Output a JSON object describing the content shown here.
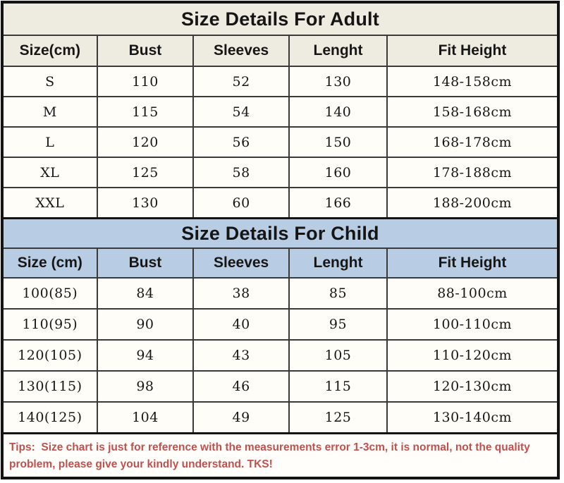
{
  "colors": {
    "adult_section_bg": "#eeece1",
    "child_section_bg": "#b8cce4",
    "row_bg": "#fffdf7",
    "grid_line": "#3a3a3a",
    "outer_border": "#141414",
    "table_text": "#161616",
    "tips_text": "#c0504d"
  },
  "adult": {
    "title": "Size Details For Adult",
    "columns": [
      "Size(cm)",
      "Bust",
      "Sleeves",
      "Lenght",
      "Fit Height"
    ],
    "rows": [
      [
        "S",
        "110",
        "52",
        "130",
        "148-158cm"
      ],
      [
        "M",
        "115",
        "54",
        "140",
        "158-168cm"
      ],
      [
        "L",
        "120",
        "56",
        "150",
        "168-178cm"
      ],
      [
        "XL",
        "125",
        "58",
        "160",
        "178-188cm"
      ],
      [
        "XXL",
        "130",
        "60",
        "166",
        "188-200cm"
      ]
    ]
  },
  "child": {
    "title": "Size Details For Child",
    "columns": [
      "Size (cm)",
      "Bust",
      "Sleeves",
      "Lenght",
      "Fit Height"
    ],
    "rows": [
      [
        "100(85)",
        "84",
        "38",
        "85",
        "88-100cm"
      ],
      [
        "110(95)",
        "90",
        "40",
        "95",
        "100-110cm"
      ],
      [
        "120(105)",
        "94",
        "43",
        "105",
        "110-120cm"
      ],
      [
        "130(115)",
        "98",
        "46",
        "115",
        "120-130cm"
      ],
      [
        "140(125)",
        "104",
        "49",
        "125",
        "130-140cm"
      ]
    ]
  },
  "tips": {
    "text": "Tips:  Size chart is just for reference with the measurements error 1-3cm, it is normal, not the quality\nproblem, please give your kindly understand. TKS!"
  },
  "chart_data": [
    {
      "type": "table",
      "title": "Size Details For Adult",
      "columns": [
        "Size(cm)",
        "Bust",
        "Sleeves",
        "Lenght",
        "Fit Height"
      ],
      "rows": [
        [
          "S",
          110,
          52,
          130,
          "148-158cm"
        ],
        [
          "M",
          115,
          54,
          140,
          "158-168cm"
        ],
        [
          "L",
          120,
          56,
          150,
          "168-178cm"
        ],
        [
          "XL",
          125,
          58,
          160,
          "178-188cm"
        ],
        [
          "XXL",
          130,
          60,
          166,
          "188-200cm"
        ]
      ]
    },
    {
      "type": "table",
      "title": "Size Details For Child",
      "columns": [
        "Size (cm)",
        "Bust",
        "Sleeves",
        "Lenght",
        "Fit Height"
      ],
      "rows": [
        [
          "100(85)",
          84,
          38,
          85,
          "88-100cm"
        ],
        [
          "110(95)",
          90,
          40,
          95,
          "100-110cm"
        ],
        [
          "120(105)",
          94,
          43,
          105,
          "110-120cm"
        ],
        [
          "130(115)",
          98,
          46,
          115,
          "120-130cm"
        ],
        [
          "140(125)",
          104,
          49,
          125,
          "130-140cm"
        ]
      ]
    }
  ]
}
